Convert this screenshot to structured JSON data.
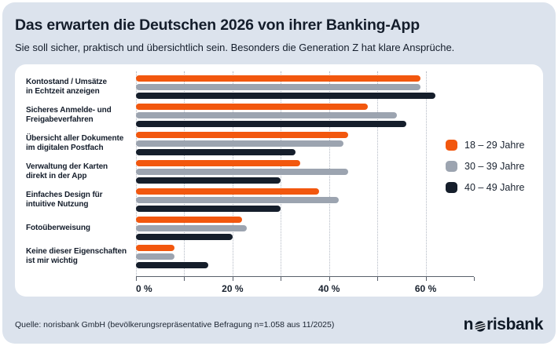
{
  "header": {
    "title": "Das erwarten die Deutschen 2026 von ihrer Banking-App",
    "subtitle": "Sie soll sicher, praktisch und übersichtlich sein. Besonders die Generation Z hat klare Ansprüche."
  },
  "chart_data": {
    "type": "bar",
    "orientation": "horizontal",
    "title": "Das erwarten die Deutschen 2026 von ihrer Banking-App",
    "categories": [
      "Kontostand / Umsätze in Echtzeit anzeigen",
      "Sicheres Anmelde- und Freigabeverfahren",
      "Übersicht aller Dokumente im digitalen Postfach",
      "Verwaltung der Karten direkt in der App",
      "Einfaches Design für intuitive Nutzung",
      "Fotoüberweisung",
      "Keine dieser Eigenschaften ist mir wichtig"
    ],
    "category_lines": [
      [
        "Kontostand / Umsätze",
        "in Echtzeit anzeigen"
      ],
      [
        "Sicheres Anmelde- und",
        "Freigabeverfahren"
      ],
      [
        "Übersicht aller Dokumente",
        "im digitalen Postfach"
      ],
      [
        "Verwaltung der Karten",
        "direkt in der App"
      ],
      [
        "Einfaches Design für",
        "intuitive Nutzung"
      ],
      [
        "Fotoüberweisung"
      ],
      [
        "Keine dieser Eigenschaften",
        "ist mir wichtig"
      ]
    ],
    "series": [
      {
        "key": "18-29",
        "name": "18 – 29 Jahre",
        "color": "#f2570e",
        "values": [
          59,
          48,
          44,
          34,
          38,
          22,
          8
        ]
      },
      {
        "key": "30-39",
        "name": "30 – 39 Jahre",
        "color": "#9ca4b0",
        "values": [
          59,
          54,
          43,
          44,
          42,
          23,
          8
        ]
      },
      {
        "key": "40-49",
        "name": "40 – 49 Jahre",
        "color": "#151e2b",
        "values": [
          62,
          56,
          33,
          30,
          30,
          20,
          15
        ]
      }
    ],
    "unit": "%",
    "xlim": [
      0,
      70
    ],
    "gridlines": [
      0,
      10,
      20,
      30,
      40,
      50,
      60
    ],
    "ticks": [
      0,
      10,
      20,
      30,
      40,
      50,
      60,
      70
    ],
    "tick_labels": [
      {
        "value": 0,
        "text": "0 %"
      },
      {
        "value": 20,
        "text": "20 %"
      },
      {
        "value": 40,
        "text": "40 %"
      },
      {
        "value": 60,
        "text": "60 %"
      }
    ],
    "grid": "dotted-vertical",
    "legend_position": "right"
  },
  "footer": {
    "source": "Quelle: norisbank GmbH (bevölkerungsrepräsentative Befragung n=1.058 aus 11/2025)",
    "logo": {
      "pre": "n",
      "post": "risbank",
      "o_icon": "striped-globe-o"
    }
  },
  "colors": {
    "background": "#dce3ed",
    "card": "#ffffff",
    "text": "#141d2b",
    "orange": "#f2570e",
    "gray": "#9ca4b0",
    "dark": "#151e2b",
    "axis": "#59606b",
    "gridline": "#b3b9c4"
  }
}
